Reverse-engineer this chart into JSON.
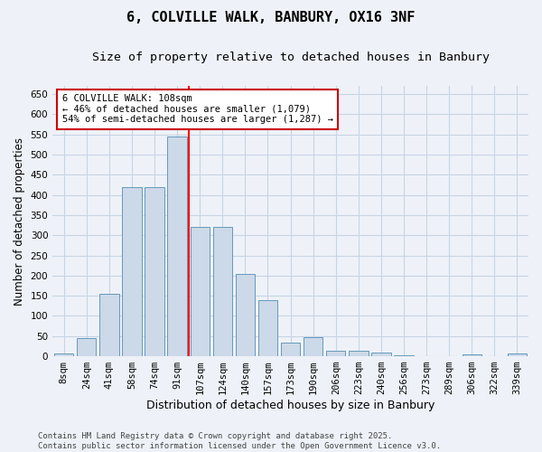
{
  "title": "6, COLVILLE WALK, BANBURY, OX16 3NF",
  "subtitle": "Size of property relative to detached houses in Banbury",
  "xlabel": "Distribution of detached houses by size in Banbury",
  "ylabel": "Number of detached properties",
  "categories": [
    "8sqm",
    "24sqm",
    "41sqm",
    "58sqm",
    "74sqm",
    "91sqm",
    "107sqm",
    "124sqm",
    "140sqm",
    "157sqm",
    "173sqm",
    "190sqm",
    "206sqm",
    "223sqm",
    "240sqm",
    "256sqm",
    "273sqm",
    "289sqm",
    "306sqm",
    "322sqm",
    "339sqm"
  ],
  "values": [
    8,
    45,
    155,
    420,
    420,
    545,
    320,
    320,
    205,
    140,
    33,
    48,
    14,
    13,
    9,
    3,
    0,
    0,
    5,
    0,
    6
  ],
  "bar_color": "#ccd9e8",
  "bar_edge_color": "#6699bb",
  "bar_width": 0.85,
  "property_line_index": 6,
  "annotation_text": "6 COLVILLE WALK: 108sqm\n← 46% of detached houses are smaller (1,079)\n54% of semi-detached houses are larger (1,287) →",
  "annotation_box_color": "#ffffff",
  "annotation_box_edgecolor": "#cc0000",
  "ylim": [
    0,
    670
  ],
  "yticks": [
    0,
    50,
    100,
    150,
    200,
    250,
    300,
    350,
    400,
    450,
    500,
    550,
    600,
    650
  ],
  "grid_color": "#c8d4e4",
  "background_color": "#eef2f8",
  "footer": "Contains HM Land Registry data © Crown copyright and database right 2025.\nContains public sector information licensed under the Open Government Licence v3.0.",
  "title_fontsize": 11,
  "subtitle_fontsize": 9.5,
  "xlabel_fontsize": 9,
  "ylabel_fontsize": 8.5,
  "tick_fontsize": 7.5,
  "footer_fontsize": 6.5
}
